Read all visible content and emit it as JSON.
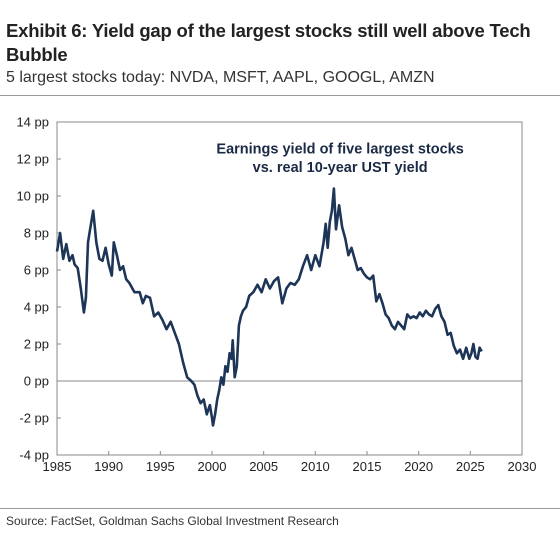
{
  "header": {
    "title": "Exhibit 6: Yield gap of the largest stocks still well above Tech Bubble",
    "subtitle": "5 largest stocks today: NVDA, MSFT, AAPL, GOOGL, AMZN"
  },
  "footer": {
    "source": "Source: FactSet, Goldman Sachs Global Investment Research"
  },
  "chart_data": {
    "type": "line",
    "title": "Exhibit 6: Yield gap of the largest stocks still well above Tech Bubble",
    "subtitle": "5 largest stocks today: NVDA, MSFT, AAPL, GOOGL, AMZN",
    "xlabel": "",
    "ylabel": "",
    "xlim": [
      1985,
      2030
    ],
    "ylim": [
      -4,
      14
    ],
    "x_ticks": [
      "1985",
      "1990",
      "1995",
      "2000",
      "2005",
      "2010",
      "2015",
      "2020",
      "2025",
      "2030"
    ],
    "y_ticks": [
      "-4 pp",
      "-2 pp",
      "0 pp",
      "2 pp",
      "4 pp",
      "6 pp",
      "8 pp",
      "10 pp",
      "12 pp",
      "14 pp"
    ],
    "grid": false,
    "zero_line": true,
    "color": "#1d3557",
    "annotations": [
      {
        "text": "Earnings yield of five largest stocks",
        "at": [
          2012.4,
          12.3
        ]
      },
      {
        "text": "vs. real 10-year UST yield",
        "at": [
          2012.4,
          11.3
        ]
      }
    ],
    "series": [
      {
        "x": [
          1985.0,
          1985.3,
          1985.6,
          1985.9,
          1986.2,
          1986.5,
          1986.7,
          1987.0,
          1987.3,
          1987.6,
          1987.8,
          1988.0,
          1988.2,
          1988.5,
          1988.8,
          1989.1,
          1989.4,
          1989.7,
          1990.0,
          1990.3,
          1990.5,
          1990.8,
          1991.1,
          1991.4,
          1991.7,
          1992.0,
          1992.5,
          1993.0,
          1993.3,
          1993.6,
          1994.0,
          1994.4,
          1994.8,
          1995.2,
          1995.6,
          1996.0,
          1996.4,
          1996.8,
          1997.2,
          1997.6,
          1998.0,
          1998.3,
          1998.6,
          1998.9,
          1999.2,
          1999.5,
          1999.8,
          2000.0,
          2000.1,
          2000.3,
          2000.5,
          2000.7,
          2000.9,
          2001.1,
          2001.3,
          2001.5,
          2001.7,
          2001.9,
          2002.0,
          2002.2,
          2002.4,
          2002.6,
          2002.8,
          2003.0,
          2003.3,
          2003.6,
          2004.0,
          2004.4,
          2004.8,
          2005.2,
          2005.6,
          2006.0,
          2006.4,
          2006.8,
          2007.2,
          2007.6,
          2008.0,
          2008.4,
          2008.8,
          2009.2,
          2009.6,
          2010.0,
          2010.4,
          2010.8,
          2011.0,
          2011.2,
          2011.4,
          2011.6,
          2011.8,
          2012.0,
          2012.3,
          2012.6,
          2012.9,
          2013.2,
          2013.5,
          2013.8,
          2014.1,
          2014.4,
          2014.7,
          2015.0,
          2015.3,
          2015.6,
          2015.9,
          2016.2,
          2016.5,
          2016.8,
          2017.1,
          2017.4,
          2017.7,
          2018.0,
          2018.3,
          2018.6,
          2018.9,
          2019.2,
          2019.5,
          2019.8,
          2020.1,
          2020.4,
          2020.7,
          2021.0,
          2021.3,
          2021.6,
          2021.9,
          2022.2,
          2022.5,
          2022.8,
          2023.1,
          2023.4,
          2023.7,
          2024.0,
          2024.3,
          2024.6,
          2024.9,
          2025.1,
          2025.3,
          2025.5,
          2025.7,
          2025.9,
          2026.1
        ],
        "y": [
          7.0,
          8.0,
          6.6,
          7.4,
          6.5,
          6.8,
          6.3,
          6.1,
          5.0,
          3.7,
          4.5,
          7.5,
          8.2,
          9.2,
          7.5,
          6.6,
          6.5,
          7.2,
          6.3,
          5.7,
          7.5,
          6.8,
          6.0,
          6.2,
          5.5,
          5.3,
          4.8,
          4.8,
          4.2,
          4.6,
          4.5,
          3.5,
          3.7,
          3.3,
          2.8,
          3.2,
          2.6,
          2.0,
          1.0,
          0.2,
          0.0,
          -0.2,
          -0.8,
          -1.2,
          -1.0,
          -1.8,
          -1.3,
          -2.0,
          -2.4,
          -1.8,
          -1.0,
          -0.5,
          0.2,
          -0.2,
          0.8,
          0.5,
          1.5,
          1.2,
          2.2,
          0.2,
          0.8,
          3.0,
          3.5,
          3.8,
          4.0,
          4.6,
          4.8,
          5.2,
          4.8,
          5.5,
          5.0,
          5.4,
          5.6,
          4.2,
          5.0,
          5.3,
          5.2,
          5.5,
          6.2,
          6.8,
          6.0,
          6.8,
          6.2,
          7.5,
          8.5,
          7.2,
          8.6,
          9.2,
          10.4,
          8.2,
          9.5,
          8.3,
          7.7,
          6.8,
          7.2,
          6.6,
          6.0,
          6.1,
          5.8,
          5.6,
          5.5,
          5.7,
          4.3,
          4.7,
          4.2,
          3.6,
          3.4,
          3.0,
          2.8,
          3.2,
          3.0,
          2.8,
          3.6,
          3.4,
          3.5,
          3.4,
          3.7,
          3.5,
          3.8,
          3.6,
          3.5,
          3.9,
          4.1,
          3.5,
          3.2,
          2.5,
          2.6,
          1.9,
          1.5,
          1.7,
          1.2,
          1.8,
          1.2,
          1.5,
          2.0,
          1.3,
          1.2,
          1.8,
          1.6
        ]
      }
    ]
  }
}
